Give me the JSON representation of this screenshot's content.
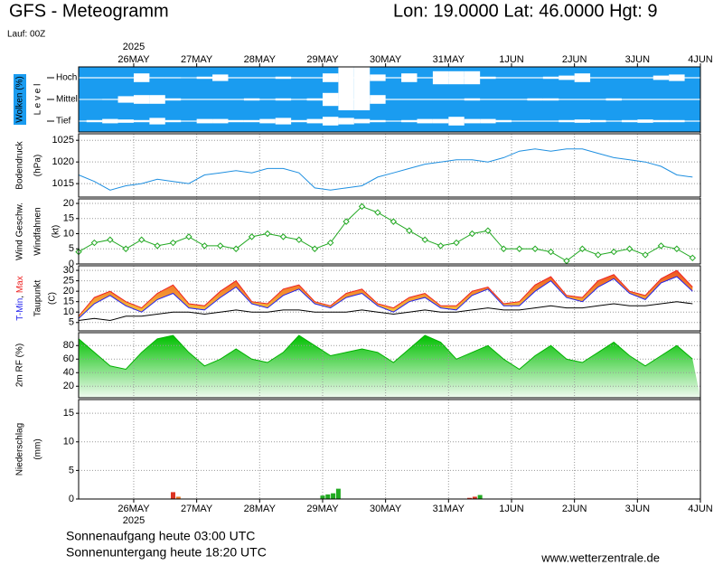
{
  "chart_data": {
    "type": "meteogram",
    "title": "GFS - Meteogramm",
    "location": "Lon: 19.0000 Lat: 46.0000 Hgt: 9",
    "run": "Lauf: 00Z",
    "year": "2025",
    "xlim": [
      0,
      237
    ],
    "xticks": [
      {
        "value": 21,
        "label": "26MAY"
      },
      {
        "value": 45,
        "label": "27MAY"
      },
      {
        "value": 69,
        "label": "28MAY"
      },
      {
        "value": 93,
        "label": "29MAY"
      },
      {
        "value": 117,
        "label": "30MAY"
      },
      {
        "value": 141,
        "label": "31MAY"
      },
      {
        "value": 165,
        "label": "1JUN"
      },
      {
        "value": 189,
        "label": "2JUN"
      },
      {
        "value": 213,
        "label": "3JUN"
      },
      {
        "value": 237,
        "label": "4JUN"
      }
    ],
    "x": [
      0,
      6,
      12,
      18,
      24,
      30,
      36,
      42,
      48,
      54,
      60,
      66,
      72,
      78,
      84,
      90,
      96,
      102,
      108,
      114,
      120,
      126,
      132,
      138,
      144,
      150,
      156,
      162,
      168,
      174,
      180,
      186,
      192,
      198,
      204,
      210,
      216,
      222,
      228,
      234
    ],
    "panels": [
      {
        "type": "clouds",
        "labels": [
          "Wolken (%)"
        ],
        "axis_label": "L e v e l",
        "background": "#1a9cf0",
        "color": "#ffffff",
        "levels": [
          {
            "name": "Hoch",
            "values": [
              5,
              5,
              5,
              5,
              40,
              5,
              5,
              0,
              10,
              30,
              5,
              5,
              5,
              10,
              5,
              5,
              40,
              100,
              100,
              30,
              5,
              40,
              5,
              60,
              60,
              60,
              10,
              5,
              5,
              5,
              10,
              20,
              40,
              5,
              5,
              5,
              5,
              20,
              30,
              5
            ]
          },
          {
            "name": "Mittel",
            "values": [
              0,
              0,
              5,
              30,
              40,
              40,
              10,
              5,
              5,
              5,
              5,
              10,
              5,
              10,
              5,
              10,
              60,
              100,
              100,
              40,
              5,
              5,
              5,
              5,
              5,
              10,
              5,
              5,
              5,
              10,
              10,
              5,
              5,
              5,
              10,
              5,
              5,
              5,
              5,
              5
            ]
          },
          {
            "name": "Tief",
            "values": [
              5,
              10,
              20,
              15,
              10,
              30,
              10,
              5,
              20,
              20,
              10,
              10,
              20,
              30,
              10,
              20,
              40,
              30,
              20,
              10,
              5,
              10,
              20,
              20,
              40,
              20,
              20,
              10,
              5,
              5,
              5,
              10,
              15,
              10,
              5,
              10,
              15,
              10,
              10,
              5
            ]
          }
        ]
      },
      {
        "type": "line",
        "labels": [
          "Bodendruck",
          "(hPa)"
        ],
        "ylim": [
          1011.9,
          1026.5
        ],
        "yticks": [
          1015,
          1020,
          1025
        ],
        "grid": true,
        "series": [
          {
            "color": "#1e8fe0",
            "values": [
              1017,
              1015.5,
              1013.5,
              1014.5,
              1015,
              1016,
              1015.5,
              1015,
              1017,
              1017.5,
              1018,
              1017.5,
              1018.5,
              1018.5,
              1017.5,
              1014,
              1013.5,
              1014,
              1014.5,
              1016.5,
              1017.5,
              1018.5,
              1019.5,
              1020,
              1020.5,
              1020.5,
              1020,
              1021,
              1022.5,
              1023,
              1022.5,
              1023,
              1023,
              1022,
              1021,
              1020.5,
              1020,
              1019,
              1017,
              1016.5
            ]
          }
        ]
      },
      {
        "type": "line",
        "labels": [
          "Wind Geschw.",
          "Windfahnen",
          "(kt)"
        ],
        "label_colors": [
          "#22a822",
          "#000000",
          "#000000"
        ],
        "ylim": [
          0,
          21.5
        ],
        "yticks": [
          0,
          5,
          10,
          15,
          20
        ],
        "grid": true,
        "marker": "diamond",
        "series": [
          {
            "color": "#22a822",
            "values": [
              4,
              7,
              8,
              5,
              8,
              6,
              7,
              9,
              6,
              6,
              5,
              9,
              10,
              9,
              8,
              5,
              7,
              14,
              19,
              17,
              14,
              11,
              8,
              6,
              7,
              10,
              11,
              5,
              5,
              5,
              4,
              1,
              5,
              3,
              4,
              5,
              3,
              6,
              5,
              2
            ]
          }
        ]
      },
      {
        "type": "band",
        "separator": ", ",
        "labels": [
          "(C)"
        ],
        "ylim": [
          1,
          32.2
        ],
        "yticks": [
          5,
          10,
          15,
          20,
          25,
          30
        ],
        "grid": true,
        "band_colors": [
          "#ee5522",
          "#f8d040"
        ],
        "series": [
          {
            "name": "T-Min",
            "color": "#2222ee",
            "values": [
              7,
              14,
              18,
              13,
              10,
              16,
              19,
              12,
              11,
              17,
              22,
              14,
              12,
              18,
              21,
              14,
              12,
              17,
              19,
              13,
              10,
              15,
              17,
              12,
              11,
              18,
              21,
              13,
              13,
              20,
              25,
              17,
              15,
              22,
              26,
              19,
              16,
              24,
              27,
              20
            ]
          },
          {
            "name": "Max",
            "color": "#ee2222",
            "values": [
              8,
              17,
              20,
              15,
              12,
              19,
              23,
              14,
              13,
              20,
              25,
              15,
              14,
              21,
              23,
              15,
              13,
              19,
              21,
              14,
              12,
              17,
              19,
              13,
              13,
              20,
              22,
              14,
              15,
              23,
              27,
              18,
              17,
              25,
              28,
              20,
              18,
              26,
              30,
              22
            ]
          },
          {
            "name": "Taupunkt",
            "color": "#000000",
            "values": [
              6,
              7,
              6,
              8,
              8,
              9,
              10,
              10,
              9,
              10,
              11,
              10,
              10,
              11,
              11,
              10,
              10,
              10,
              11,
              10,
              9,
              10,
              11,
              10,
              10,
              11,
              12,
              11,
              11,
              12,
              13,
              12,
              12,
              13,
              14,
              13,
              13,
              14,
              15,
              14
            ]
          }
        ]
      },
      {
        "type": "area",
        "labels": [
          "2m RF (%)"
        ],
        "label_colors": [
          "#22a822"
        ],
        "ylim": [
          3,
          99
        ],
        "yticks": [
          20,
          40,
          60,
          80
        ],
        "grid": true,
        "area_colors": [
          "#00c000",
          "#f0faf0"
        ],
        "series": [
          {
            "color": "#00b000",
            "values": [
              90,
              70,
              50,
              45,
              70,
              90,
              95,
              70,
              50,
              60,
              75,
              60,
              55,
              70,
              95,
              80,
              65,
              70,
              75,
              70,
              55,
              75,
              95,
              85,
              60,
              70,
              80,
              60,
              45,
              65,
              80,
              60,
              55,
              70,
              85,
              65,
              50,
              65,
              80,
              60
            ]
          }
        ]
      },
      {
        "type": "bar",
        "labels": [
          "Niederschlag",
          "(mm)"
        ],
        "ylim": [
          0,
          17.4
        ],
        "yticks": [
          0,
          5,
          10,
          15
        ],
        "grid": true,
        "x": [
          36,
          38,
          93,
          95,
          97,
          99,
          149,
          151,
          153
        ],
        "values": [
          1.2,
          0.4,
          0.6,
          0.8,
          1.0,
          1.8,
          0.2,
          0.4,
          0.7
        ],
        "colors": [
          "#dd3322",
          "#ee7722",
          "#22aa22",
          "#22aa22",
          "#22aa22",
          "#22aa22",
          "#dd3322",
          "#dd3322",
          "#22aa22"
        ]
      }
    ],
    "sunrise": "Sonnenaufgang heute 03:00 UTC",
    "sunset": "Sonnenuntergang heute 18:20 UTC",
    "source": "www.wetterzentrale.de"
  }
}
